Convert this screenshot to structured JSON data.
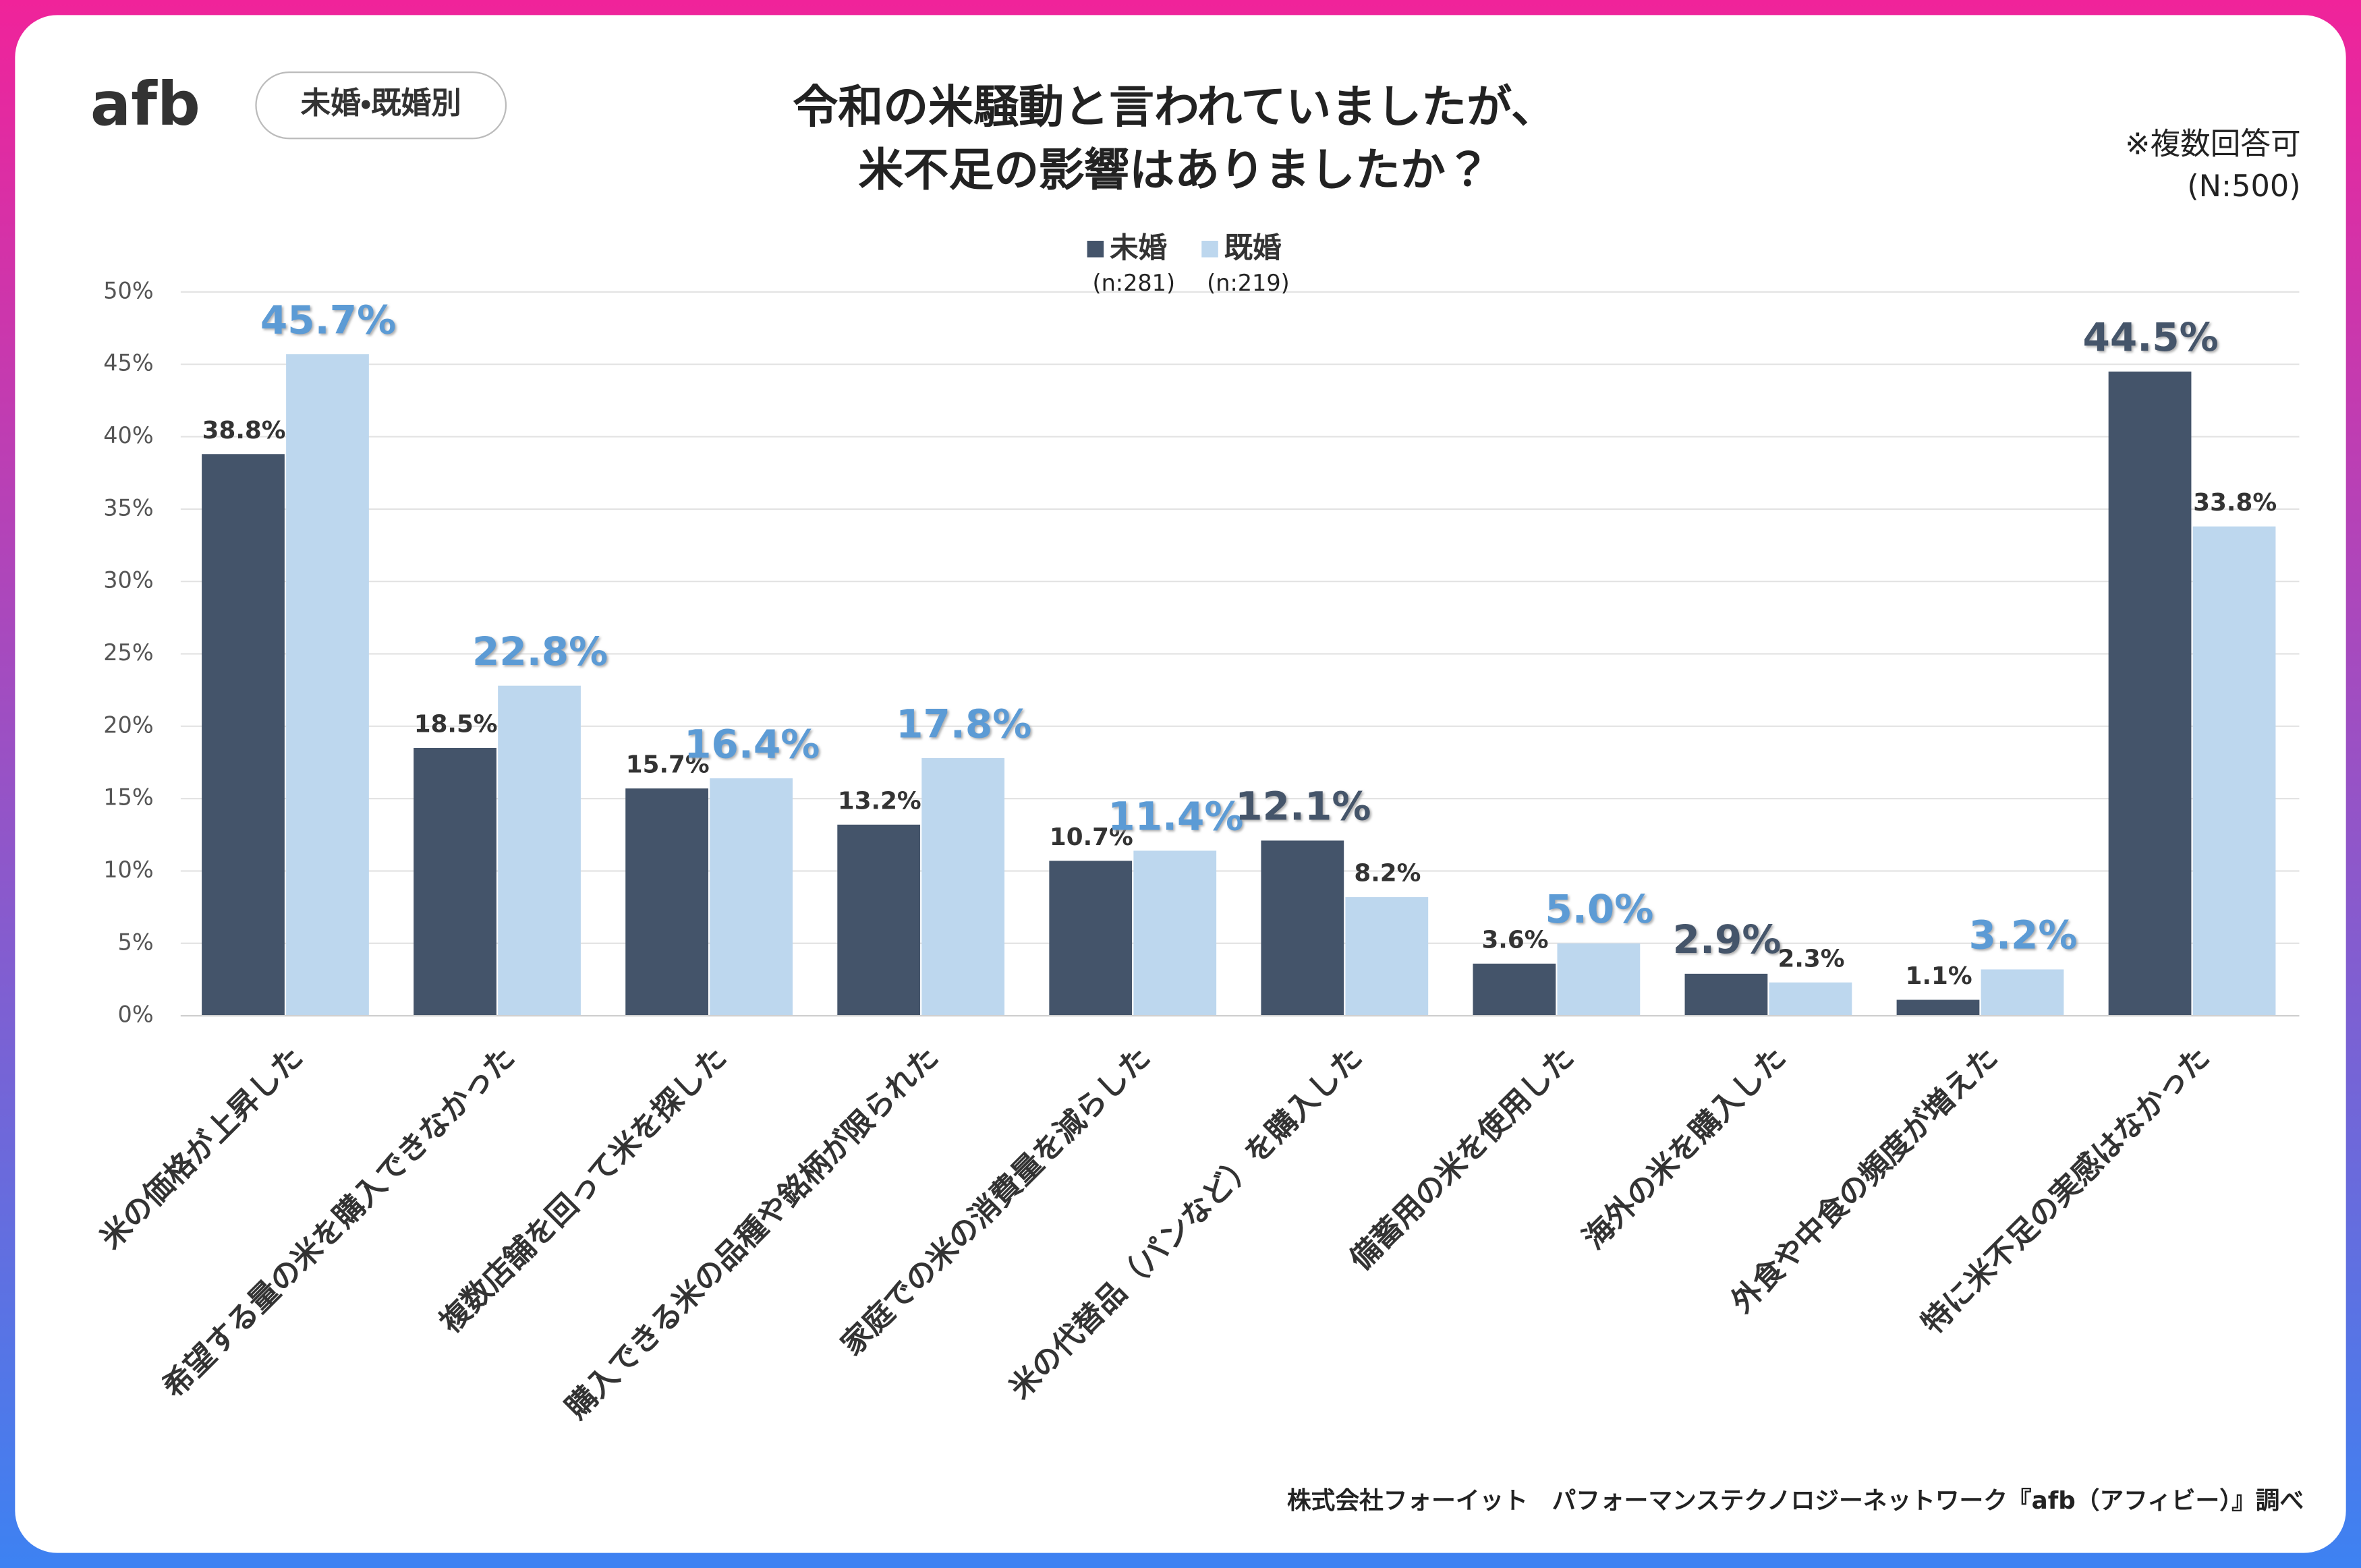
{
  "logo": "afb",
  "badge": "未婚・既婚別",
  "note": "※複数回答可",
  "sample_total": "(N:500)",
  "source": "株式会社フォーイット　パフォーマンステクノロジーネットワーク『afb（アフィビー）』調べ",
  "chart_data": {
    "type": "bar",
    "title": [
      "令和の米騒動と言われていましたが、",
      "米不足の影響はありましたか？"
    ],
    "categories": [
      "米の価格が上昇した",
      "希望する量の米を購入できなかった",
      "複数店舗を回って米を探した",
      "購入できる米の品種や銘柄が限られた",
      "家庭での米の消費量を減らした",
      "米の代替品（パンなど）を購入した",
      "備蓄用の米を使用した",
      "海外の米を購入した",
      "外食や中食の頻度が増えた",
      "特に米不足の実感はなかった"
    ],
    "series": [
      {
        "name": "未婚",
        "sample": "(n:281)",
        "color": "#44546a",
        "highlight_color": "#44546a",
        "values": [
          38.8,
          18.5,
          15.7,
          13.2,
          10.7,
          12.1,
          3.6,
          2.9,
          1.1,
          44.5
        ],
        "value_labels": [
          "38.8%",
          "18.5%",
          "15.7%",
          "13.2%",
          "10.7%",
          "12.1%",
          "3.6%",
          "2.9%",
          "1.1%",
          "44.5%"
        ]
      },
      {
        "name": "既婚",
        "sample": "(n:219)",
        "color": "#bdd7ee",
        "highlight_color": "#5b9bd5",
        "values": [
          45.7,
          22.8,
          16.4,
          17.8,
          11.4,
          8.2,
          5.0,
          2.3,
          3.2,
          33.8
        ],
        "value_labels": [
          "45.7%",
          "22.8%",
          "16.4%",
          "17.8%",
          "11.4%",
          "8.2%",
          "5.0%",
          "2.3%",
          "3.2%",
          "33.8%"
        ]
      }
    ],
    "ylim": [
      0,
      50
    ],
    "yticks": [
      {
        "value": 0,
        "label": "0%"
      },
      {
        "value": 5,
        "label": "5%"
      },
      {
        "value": 10,
        "label": "10%"
      },
      {
        "value": 15,
        "label": "15%"
      },
      {
        "value": 20,
        "label": "20%"
      },
      {
        "value": 25,
        "label": "25%"
      },
      {
        "value": 30,
        "label": "30%"
      },
      {
        "value": 35,
        "label": "35%"
      },
      {
        "value": 40,
        "label": "40%"
      },
      {
        "value": 45,
        "label": "45%"
      },
      {
        "value": 50,
        "label": "50%"
      }
    ],
    "grid": true
  }
}
